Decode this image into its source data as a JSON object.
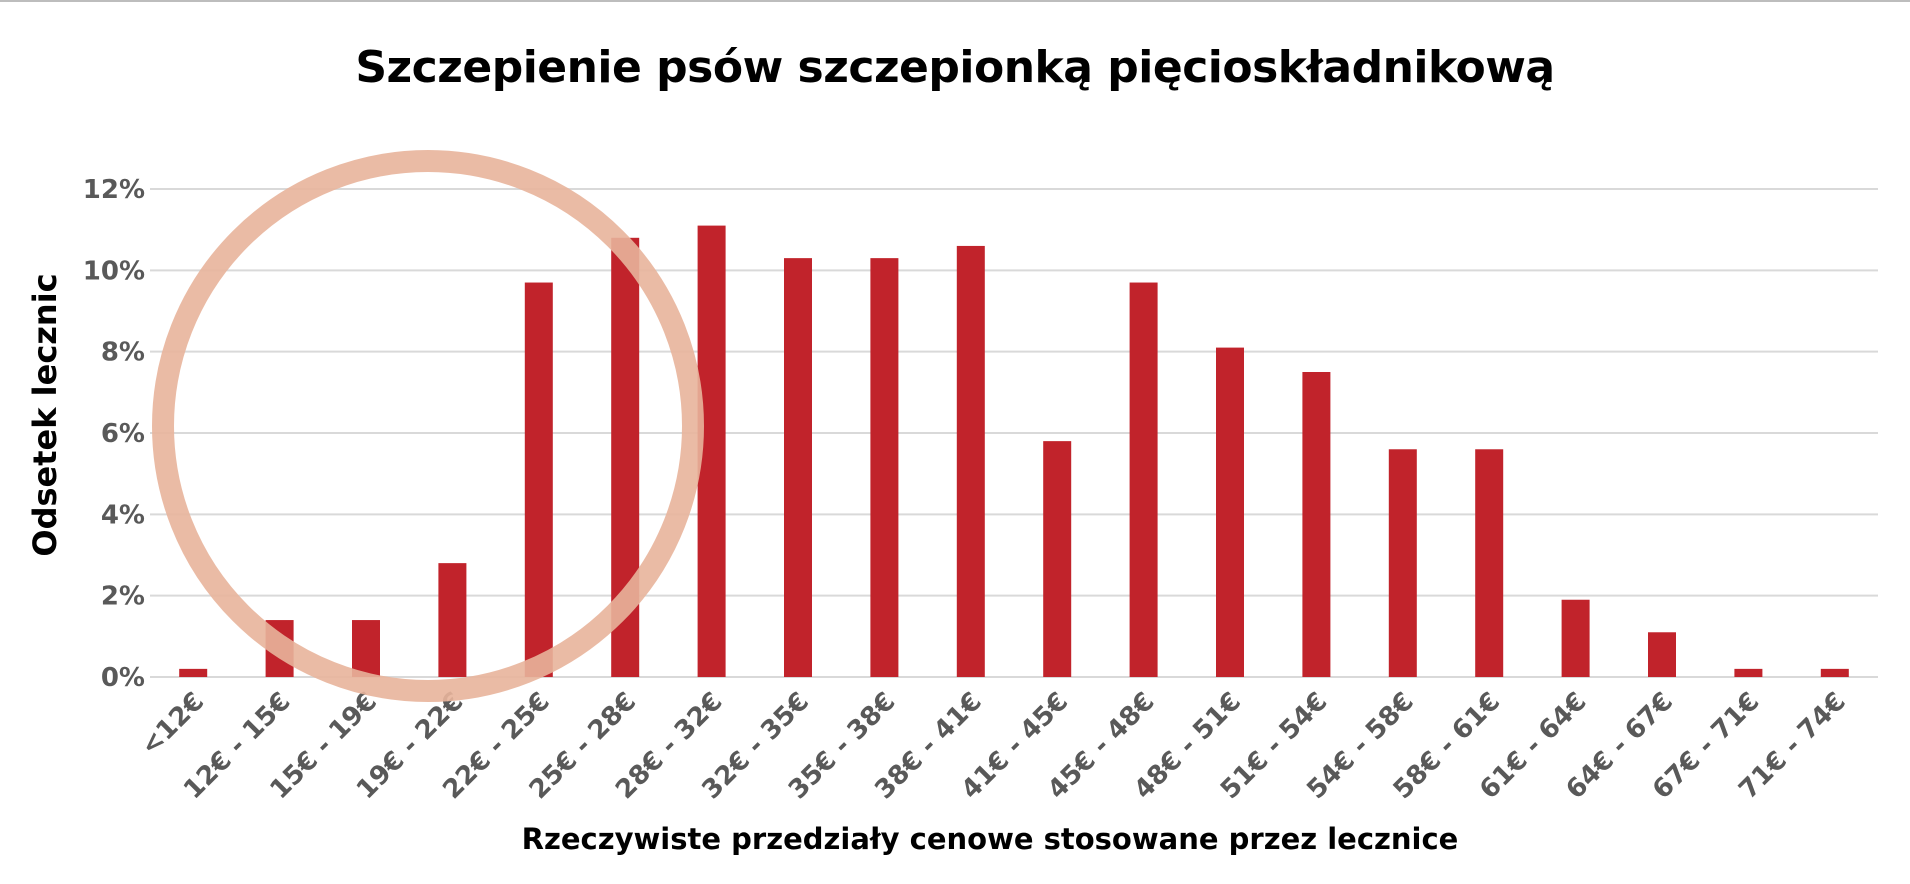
{
  "chart_data": {
    "type": "bar",
    "title": "Szczepienie psów szczepionką pięcioskładnikową",
    "xlabel": "Rzeczywiste przedziały cenowe stosowane przez lecznice",
    "ylabel": "Odsetek lecznic",
    "categories": [
      "<12€",
      "12€ - 15€",
      "15€ - 19€",
      "19€ - 22€",
      "22€ - 25€",
      "25€ - 28€",
      "28€ - 32€",
      "32€ - 35€",
      "35€ - 38€",
      "38€ - 41€",
      "41€ - 45€",
      "45€ - 48€",
      "48€ - 51€",
      "51€ - 54€",
      "54€ - 58€",
      "58€ - 61€",
      "61€ - 64€",
      "64€ - 67€",
      "67€ - 71€",
      "71€ - 74€"
    ],
    "values": [
      0.2,
      1.4,
      1.4,
      2.8,
      9.7,
      10.8,
      11.1,
      10.3,
      10.3,
      10.6,
      5.8,
      9.7,
      8.1,
      7.5,
      5.6,
      5.6,
      1.9,
      1.1,
      0.2,
      0.2
    ],
    "ylim": [
      0,
      12
    ],
    "yticks": [
      "0%",
      "2%",
      "4%",
      "6%",
      "8%",
      "10%",
      "12%"
    ],
    "grid": true,
    "legend": "none",
    "annotation": "circle highlighting the lowest price ranges (<12€ to 25€)",
    "colors": {
      "bar": "#c1232b",
      "highlight_circle": "#e8b49b",
      "gridline": "#d9d9d9",
      "tick_text": "#595959"
    }
  }
}
